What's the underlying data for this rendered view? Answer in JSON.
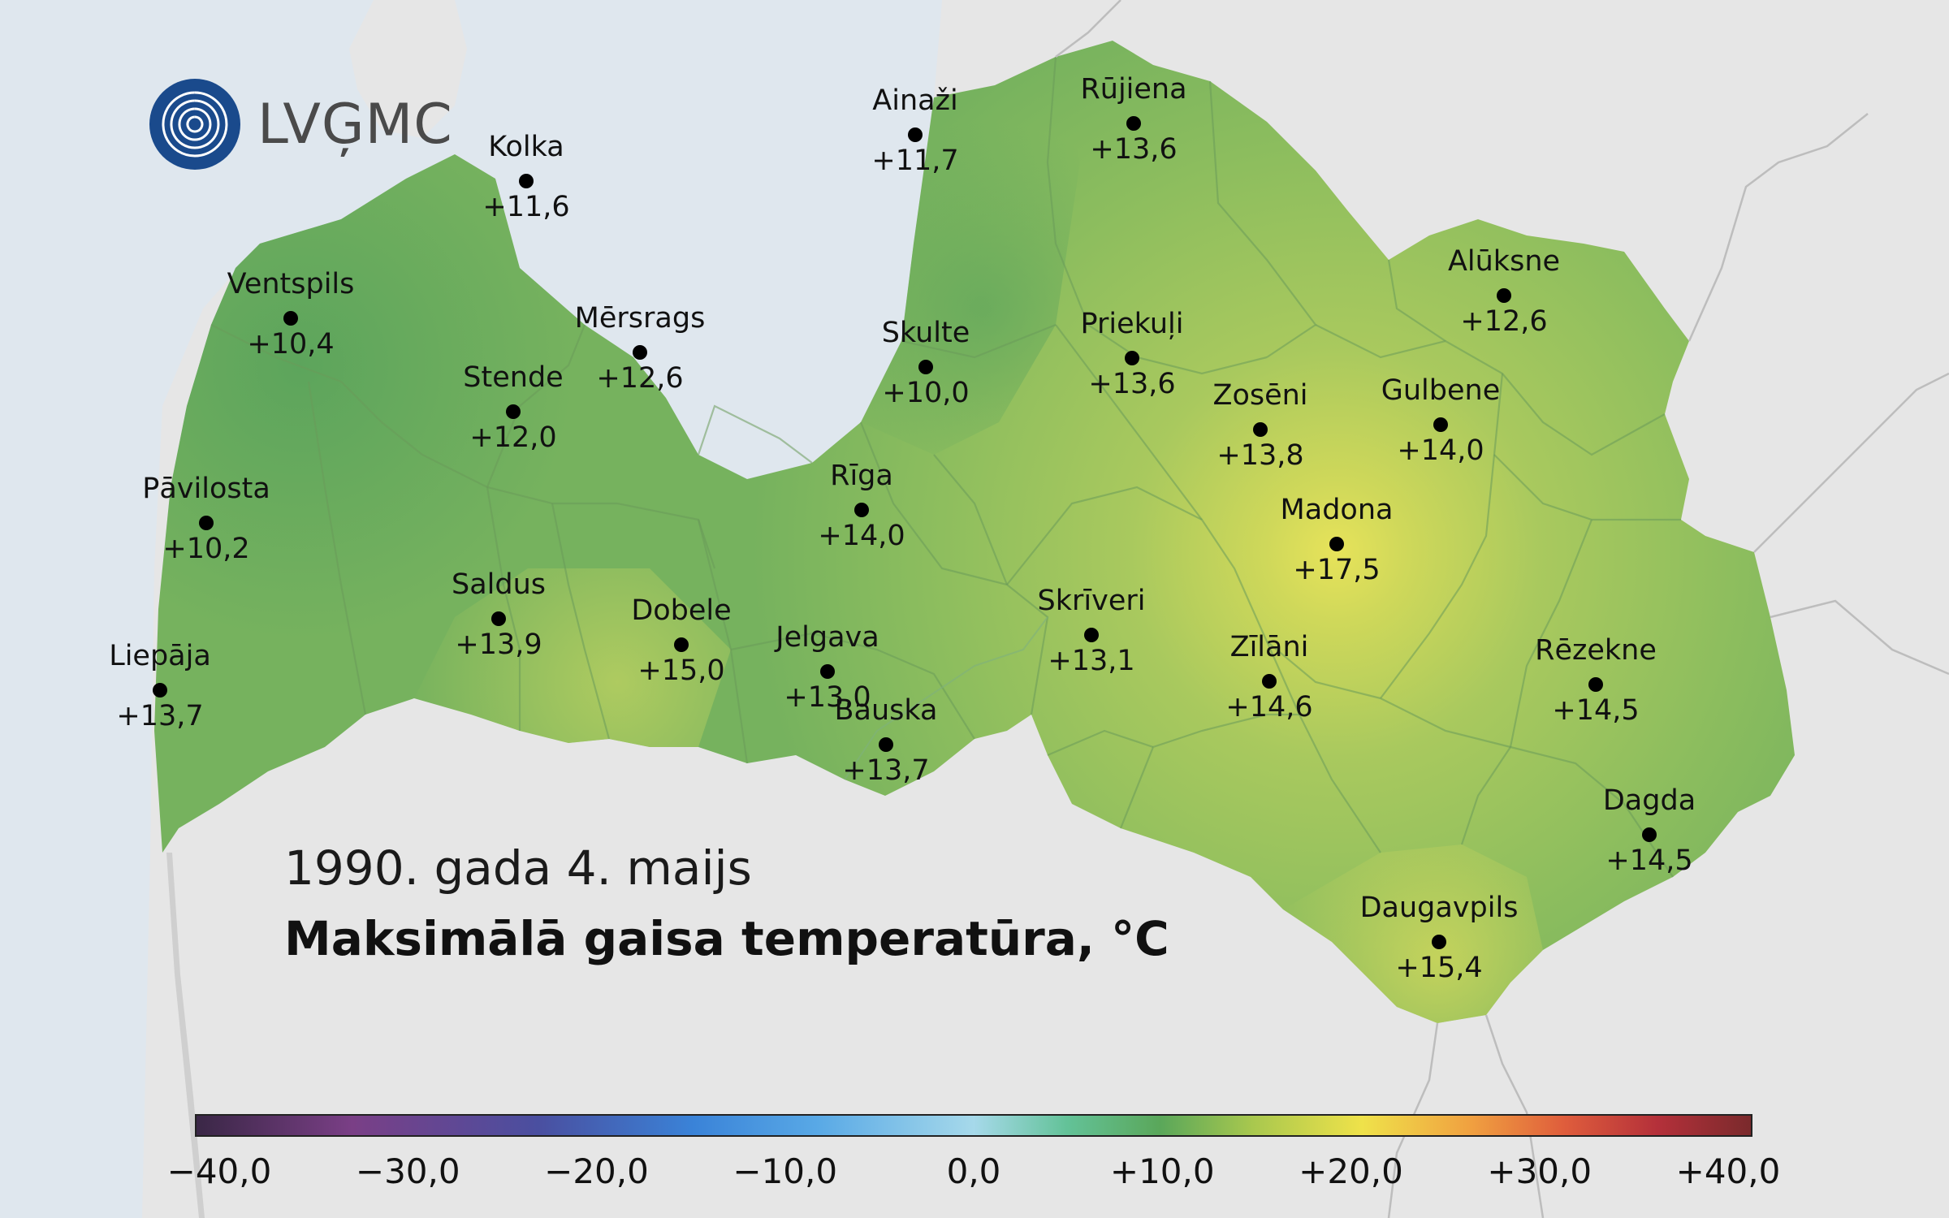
{
  "logo": {
    "text": "LVĢMC"
  },
  "date_title": "1990. gada 4. maijs",
  "main_title": "Maksimālā gaisa temperatūra, °C",
  "stations": [
    {
      "name": "Kolka",
      "value": "+11,6"
    },
    {
      "name": "Ainaži",
      "value": "+11,7"
    },
    {
      "name": "Rūjiena",
      "value": "+13,6"
    },
    {
      "name": "Ventspils",
      "value": "+10,4"
    },
    {
      "name": "Mērsrags",
      "value": "+12,6"
    },
    {
      "name": "Skulte",
      "value": "+10,0"
    },
    {
      "name": "Priekuļi",
      "value": "+13,6"
    },
    {
      "name": "Alūksne",
      "value": "+12,6"
    },
    {
      "name": "Stende",
      "value": "+12,0"
    },
    {
      "name": "Zosēni",
      "value": "+13,8"
    },
    {
      "name": "Gulbene",
      "value": "+14,0"
    },
    {
      "name": "Pāvilosta",
      "value": "+10,2"
    },
    {
      "name": "Rīga",
      "value": "+14,0"
    },
    {
      "name": "Madona",
      "value": "+17,5"
    },
    {
      "name": "Saldus",
      "value": "+13,9"
    },
    {
      "name": "Dobele",
      "value": "+15,0"
    },
    {
      "name": "Jelgava",
      "value": "+13,0"
    },
    {
      "name": "Skrīveri",
      "value": "+13,1"
    },
    {
      "name": "Liepāja",
      "value": "+13,7"
    },
    {
      "name": "Zīlāni",
      "value": "+14,6"
    },
    {
      "name": "Rēzekne",
      "value": "+14,5"
    },
    {
      "name": "Bauska",
      "value": "+13,7"
    },
    {
      "name": "Dagda",
      "value": "+14,5"
    },
    {
      "name": "Daugavpils",
      "value": "+15,4"
    }
  ],
  "colorbar": {
    "ticks": [
      "−40,0",
      "−30,0",
      "−20,0",
      "−10,0",
      "0,0",
      "+10,0",
      "+20,0",
      "+30,0",
      "+40,0"
    ]
  },
  "colors": {
    "sea": "#dfe7ee",
    "land": "#e6e6e6",
    "logo_blue": "#1a4a8c"
  }
}
